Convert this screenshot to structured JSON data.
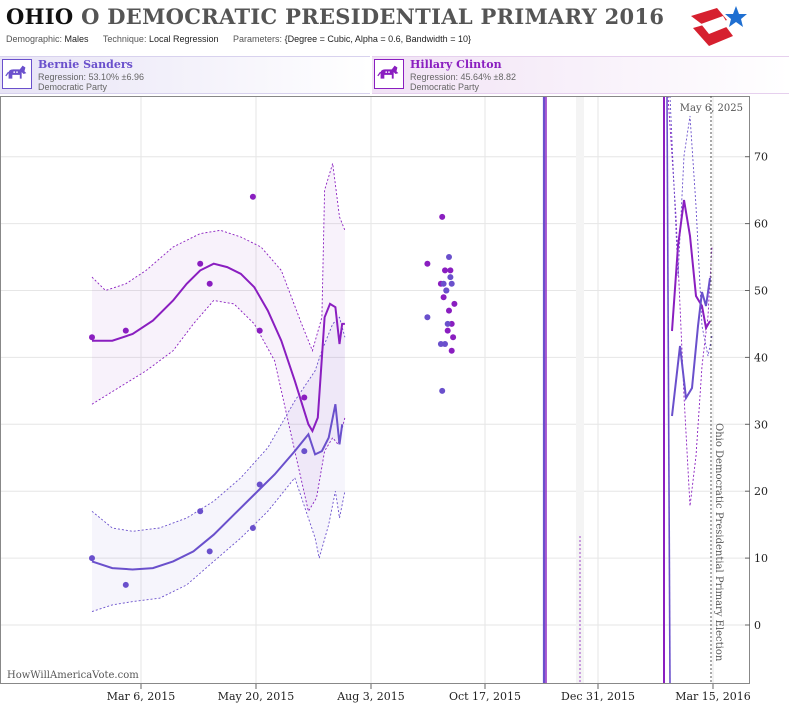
{
  "header": {
    "title_state": "OHIO",
    "title_rest": "O DEMOCRATIC PRESIDENTIAL PRIMARY 2016",
    "demographic_label": "Demographic:",
    "demographic_value": "Males",
    "technique_label": "Technique:",
    "technique_value": "Local Regression",
    "parameters_label": "Parameters:",
    "parameters_value": "{Degree = Cubic, Alpha = 0.6, Bandwidth = 10}"
  },
  "candidates": [
    {
      "name": "Bernie Sanders",
      "regression": "Regression: 53.10% ±6.96",
      "party": "Democratic Party",
      "color": "#6a50cc"
    },
    {
      "name": "Hillary Clinton",
      "regression": "Regression: 45.64% ±8.82",
      "party": "Democratic Party",
      "color": "#8a1ec0"
    }
  ],
  "watermark": "HowWillAmericaVote.com",
  "today_label": "May 6, 2025",
  "election_label": "Ohio Democratic Presidential Primary Election",
  "chart_data": {
    "type": "scatter",
    "x_tick_labels": [
      "Mar 6, 2015",
      "May 20, 2015",
      "Aug 3, 2015",
      "Oct 17, 2015",
      "Dec 31, 2015",
      "Mar 15, 2016"
    ],
    "y_ticks": [
      0,
      10,
      20,
      30,
      40,
      50,
      60,
      70
    ],
    "ylim": [
      -7,
      80
    ],
    "xlim_days": [
      -60,
      380
    ],
    "grid": true,
    "series": [
      {
        "name": "Hillary Clinton",
        "color": "#8a1ec0",
        "points": [
          [
            -60,
            43
          ],
          [
            -35,
            44
          ],
          [
            20,
            54
          ],
          [
            27,
            51
          ],
          [
            59,
            64
          ],
          [
            64,
            44
          ],
          [
            97,
            34
          ],
          [
            188,
            54
          ],
          [
            198,
            51
          ],
          [
            199,
            61
          ],
          [
            200,
            49
          ],
          [
            201,
            53
          ],
          [
            202,
            50
          ],
          [
            203,
            44
          ],
          [
            204,
            47
          ],
          [
            205,
            53
          ],
          [
            206,
            41
          ],
          [
            207,
            43
          ],
          [
            208,
            48
          ],
          [
            206,
            45
          ]
        ],
        "trend": [
          [
            -60,
            42.5
          ],
          [
            -45,
            42.5
          ],
          [
            -30,
            43.5
          ],
          [
            -15,
            45.5
          ],
          [
            0,
            48.5
          ],
          [
            10,
            51
          ],
          [
            20,
            53
          ],
          [
            30,
            54
          ],
          [
            40,
            53.5
          ],
          [
            50,
            52.5
          ],
          [
            60,
            50.5
          ],
          [
            70,
            47
          ],
          [
            80,
            42.5
          ],
          [
            90,
            36.5
          ],
          [
            100,
            30
          ],
          [
            103,
            29
          ],
          [
            107,
            31
          ],
          [
            110,
            40
          ],
          [
            112,
            46
          ],
          [
            116,
            48
          ],
          [
            120,
            47.5
          ],
          [
            123,
            42
          ],
          [
            125,
            45
          ],
          [
            127,
            45
          ]
        ],
        "band_upper": [
          [
            -60,
            52
          ],
          [
            -50,
            50
          ],
          [
            -35,
            51
          ],
          [
            -20,
            53
          ],
          [
            0,
            56.5
          ],
          [
            20,
            58.5
          ],
          [
            35,
            59
          ],
          [
            50,
            58
          ],
          [
            65,
            56.5
          ],
          [
            80,
            53
          ],
          [
            95,
            45
          ],
          [
            103,
            41
          ],
          [
            110,
            46
          ],
          [
            112,
            65
          ],
          [
            118,
            69
          ],
          [
            123,
            61
          ],
          [
            127,
            59
          ]
        ],
        "band_lower": [
          [
            -60,
            33
          ],
          [
            -40,
            35.5
          ],
          [
            -20,
            38
          ],
          [
            0,
            41
          ],
          [
            15,
            45
          ],
          [
            30,
            48.5
          ],
          [
            45,
            48
          ],
          [
            60,
            45
          ],
          [
            75,
            39.5
          ],
          [
            90,
            26
          ],
          [
            100,
            17
          ],
          [
            106,
            19
          ],
          [
            112,
            26
          ],
          [
            118,
            28
          ],
          [
            122,
            27
          ],
          [
            127,
            31
          ]
        ]
      },
      {
        "name": "Bernie Sanders",
        "color": "#6a50cc",
        "points": [
          [
            -60,
            10
          ],
          [
            -35,
            6
          ],
          [
            20,
            17
          ],
          [
            27,
            11
          ],
          [
            59,
            14.5
          ],
          [
            64,
            21
          ],
          [
            97,
            26
          ],
          [
            188,
            46
          ],
          [
            198,
            42
          ],
          [
            199,
            35
          ],
          [
            200,
            51
          ],
          [
            201,
            42
          ],
          [
            202,
            50
          ],
          [
            203,
            45
          ],
          [
            204,
            55
          ],
          [
            205,
            52
          ],
          [
            206,
            51
          ]
        ],
        "trend": [
          [
            -60,
            9.5
          ],
          [
            -45,
            8.5
          ],
          [
            -30,
            8.3
          ],
          [
            -15,
            8.5
          ],
          [
            0,
            9.5
          ],
          [
            15,
            11
          ],
          [
            30,
            13.5
          ],
          [
            45,
            16.5
          ],
          [
            60,
            19.5
          ],
          [
            75,
            22.5
          ],
          [
            90,
            26
          ],
          [
            100,
            28.5
          ],
          [
            105,
            25.5
          ],
          [
            110,
            26
          ],
          [
            115,
            28
          ],
          [
            120,
            33
          ],
          [
            123,
            27
          ],
          [
            125,
            30
          ]
        ],
        "band_upper": [
          [
            -60,
            17
          ],
          [
            -45,
            14.5
          ],
          [
            -30,
            14
          ],
          [
            -10,
            14.5
          ],
          [
            10,
            16
          ],
          [
            30,
            18.5
          ],
          [
            50,
            22
          ],
          [
            70,
            26.5
          ],
          [
            90,
            33.5
          ],
          [
            105,
            38
          ],
          [
            110,
            41
          ],
          [
            118,
            45
          ],
          [
            123,
            46
          ],
          [
            127,
            43
          ]
        ],
        "band_lower": [
          [
            -60,
            2
          ],
          [
            -45,
            3
          ],
          [
            -30,
            3.5
          ],
          [
            -10,
            4
          ],
          [
            10,
            6
          ],
          [
            30,
            9.5
          ],
          [
            50,
            13
          ],
          [
            70,
            17
          ],
          [
            90,
            22
          ],
          [
            105,
            13
          ],
          [
            108,
            10
          ],
          [
            115,
            15
          ],
          [
            120,
            20
          ],
          [
            123,
            16
          ],
          [
            127,
            20
          ]
        ]
      }
    ]
  }
}
